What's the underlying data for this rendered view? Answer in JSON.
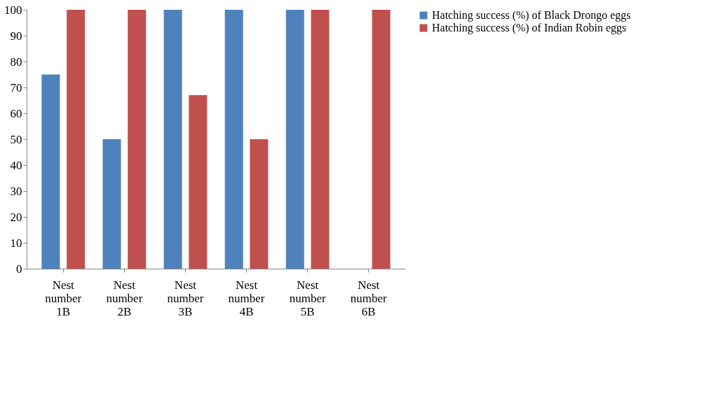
{
  "chart_data": {
    "type": "bar",
    "categories": [
      "Nest number 1B",
      "Nest number 2B",
      "Nest number 3B",
      "Nest number 4B",
      "Nest number 5B",
      "Nest number 6B"
    ],
    "series": [
      {
        "name": "Hatching success (%) of Black Drongo eggs",
        "color": "#4f81bd",
        "values": [
          75,
          50,
          100,
          100,
          100,
          0
        ]
      },
      {
        "name": "Hatching success (%) of Indian Robin eggs",
        "color": "#c0504d",
        "values": [
          100,
          100,
          67,
          50,
          100,
          100
        ]
      }
    ],
    "ylim": [
      0,
      100
    ],
    "yticks": [
      0,
      10,
      20,
      30,
      40,
      50,
      60,
      70,
      80,
      90,
      100
    ],
    "grid": false,
    "legend": "right"
  }
}
